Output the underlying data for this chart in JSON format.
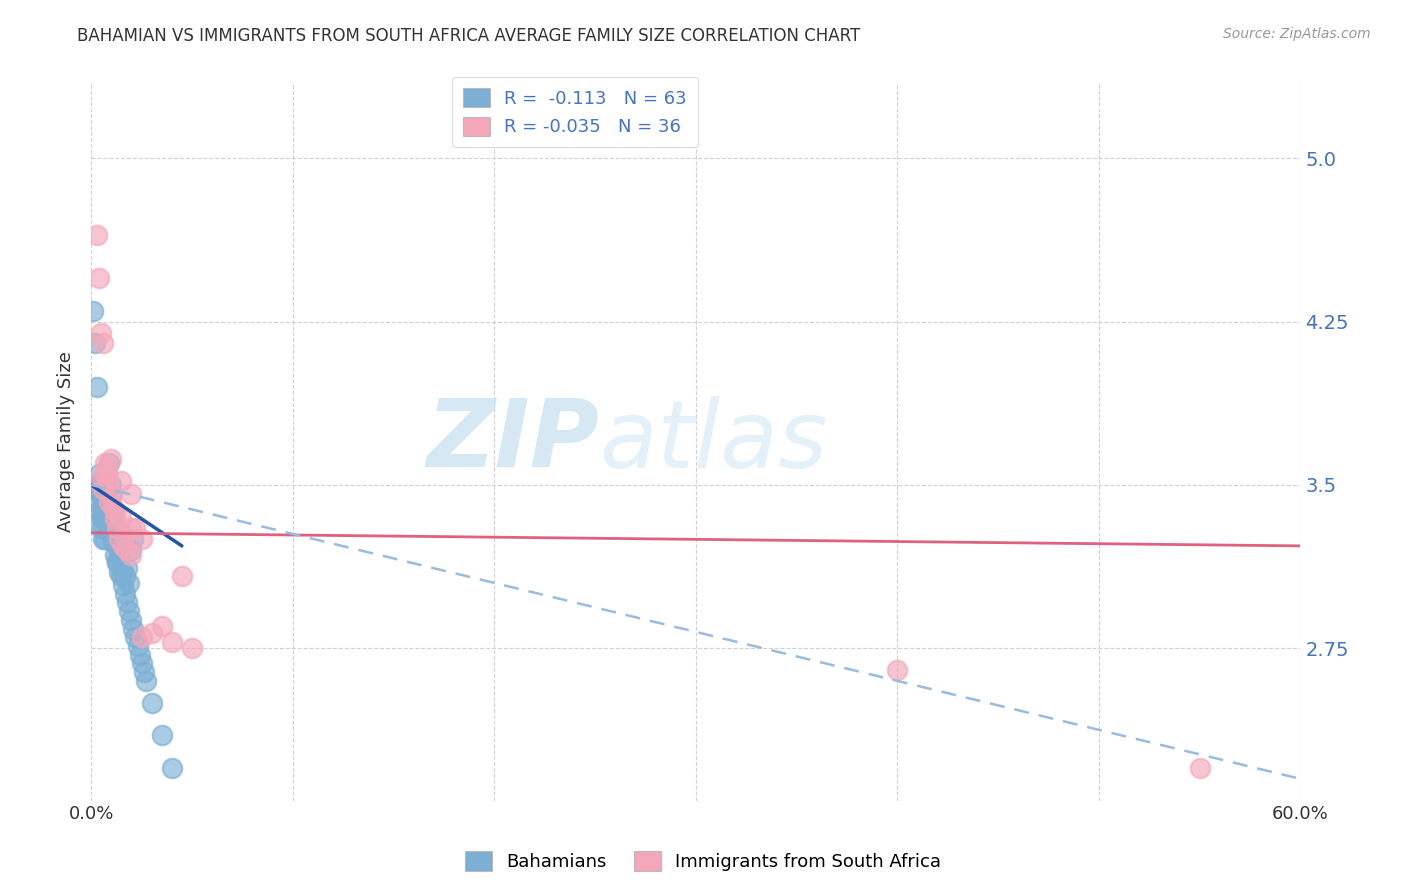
{
  "title": "BAHAMIAN VS IMMIGRANTS FROM SOUTH AFRICA AVERAGE FAMILY SIZE CORRELATION CHART",
  "source": "Source: ZipAtlas.com",
  "ylabel": "Average Family Size",
  "xlim": [
    0.0,
    0.6
  ],
  "ylim": [
    2.05,
    5.35
  ],
  "yticks": [
    2.75,
    3.5,
    4.25,
    5.0
  ],
  "xticks": [
    0.0,
    0.1,
    0.2,
    0.3,
    0.4,
    0.5,
    0.6
  ],
  "xtick_labels": [
    "0.0%",
    "",
    "",
    "",
    "",
    "",
    "60.0%"
  ],
  "right_ytick_color": "#4472c4",
  "blue_color": "#7bafd4",
  "pink_color": "#f4a7b9",
  "blue_line_color": "#2255aa",
  "pink_line_color": "#e06080",
  "dashed_line_color": "#99bbdd",
  "watermark_zip": "ZIP",
  "watermark_atlas": "atlas",
  "bahamian_x": [
    0.001,
    0.002,
    0.003,
    0.004,
    0.005,
    0.005,
    0.005,
    0.006,
    0.006,
    0.006,
    0.006,
    0.007,
    0.007,
    0.007,
    0.007,
    0.008,
    0.008,
    0.009,
    0.01,
    0.01,
    0.011,
    0.012,
    0.013,
    0.013,
    0.014,
    0.015,
    0.016,
    0.017,
    0.018,
    0.019,
    0.02,
    0.021,
    0.002,
    0.003,
    0.004,
    0.004,
    0.005,
    0.006,
    0.007,
    0.007,
    0.008,
    0.009,
    0.01,
    0.011,
    0.012,
    0.013,
    0.014,
    0.015,
    0.016,
    0.017,
    0.018,
    0.019,
    0.02,
    0.021,
    0.022,
    0.023,
    0.024,
    0.025,
    0.026,
    0.027,
    0.03,
    0.035,
    0.04
  ],
  "bahamian_y": [
    4.3,
    4.15,
    3.95,
    3.5,
    3.45,
    3.35,
    3.3,
    3.4,
    3.35,
    3.3,
    3.25,
    3.5,
    3.45,
    3.35,
    3.25,
    3.55,
    3.4,
    3.6,
    3.5,
    3.45,
    3.38,
    3.3,
    3.22,
    3.15,
    3.18,
    3.28,
    3.1,
    3.08,
    3.12,
    3.05,
    3.2,
    3.25,
    3.48,
    3.42,
    3.38,
    3.55,
    3.52,
    3.46,
    3.4,
    3.44,
    3.36,
    3.32,
    3.28,
    3.24,
    3.18,
    3.14,
    3.1,
    3.08,
    3.04,
    3.0,
    2.96,
    2.92,
    2.88,
    2.84,
    2.8,
    2.76,
    2.72,
    2.68,
    2.64,
    2.6,
    2.5,
    2.35,
    2.2
  ],
  "sa_x": [
    0.003,
    0.004,
    0.005,
    0.006,
    0.007,
    0.008,
    0.009,
    0.01,
    0.011,
    0.012,
    0.013,
    0.014,
    0.016,
    0.018,
    0.02,
    0.022,
    0.025,
    0.004,
    0.006,
    0.007,
    0.009,
    0.012,
    0.015,
    0.02,
    0.025,
    0.03,
    0.035,
    0.04,
    0.045,
    0.05,
    0.4,
    0.55,
    0.008,
    0.01,
    0.015,
    0.02
  ],
  "sa_y": [
    4.65,
    4.45,
    4.2,
    4.15,
    3.6,
    3.55,
    3.5,
    3.45,
    3.4,
    3.35,
    3.3,
    3.25,
    3.22,
    3.2,
    3.18,
    3.3,
    3.25,
    3.52,
    3.48,
    3.55,
    3.42,
    3.38,
    3.35,
    3.3,
    2.8,
    2.82,
    2.85,
    2.78,
    3.08,
    2.75,
    2.65,
    2.2,
    3.58,
    3.62,
    3.52,
    3.46
  ],
  "blue_trend_x": [
    0.0,
    0.045
  ],
  "blue_trend_y": [
    3.5,
    3.22
  ],
  "pink_trend_x": [
    0.0,
    0.6
  ],
  "pink_trend_y": [
    3.28,
    3.22
  ],
  "dashed_trend_x": [
    0.0,
    0.6
  ],
  "dashed_trend_y": [
    3.5,
    2.15
  ]
}
